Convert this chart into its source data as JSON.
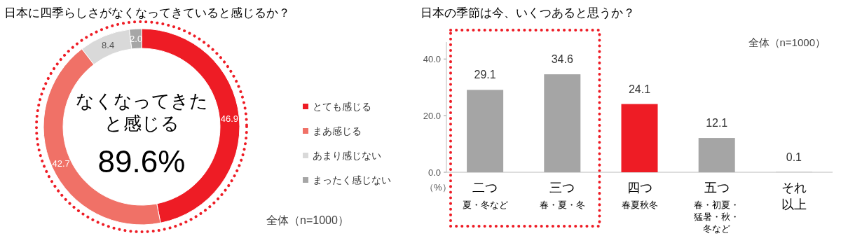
{
  "chart_data": [
    {
      "type": "donut",
      "title": "日本に四季らしさがなくなってきていると感じるか？",
      "categories": [
        "とても感じる",
        "まあ感じる",
        "あまり感じない",
        "まったく感じない"
      ],
      "values": [
        46.9,
        42.7,
        8.4,
        2.0
      ],
      "colors": [
        "#ee1c25",
        "#f07167",
        "#d9d9d9",
        "#a6a6a6"
      ],
      "value_labels": [
        "46.9",
        "42.7",
        "8.4",
        "2.0"
      ],
      "legend": "right",
      "annotations": [
        "なくなってきたと感じる",
        "89.6%",
        "全体（n=1000）"
      ]
    },
    {
      "type": "bar",
      "title": "日本の季節は今、いくつあると思うか？",
      "categories": [
        "二つ夏・冬など",
        "三つ春・夏・冬",
        "四つ春夏秋冬",
        "五つ春・初夏・猛暑・秋・冬など",
        "それ以上"
      ],
      "values": [
        29.1,
        34.6,
        24.1,
        12.1,
        0.1
      ],
      "colors": [
        "#a5a5a5",
        "#a5a5a5",
        "#ee1c25",
        "#a5a5a5",
        "#a5a5a5"
      ],
      "value_labels": [
        "29.1",
        "34.6",
        "24.1",
        "12.1",
        "0.1"
      ],
      "ylim": [
        0,
        46
      ],
      "yticks": [
        {
          "value": 0,
          "label": "0.0"
        },
        {
          "value": 20,
          "label": "20.0"
        },
        {
          "value": 40,
          "label": "40.0"
        }
      ],
      "ylabel": "（%）",
      "annotations": [
        "全体（n=1000）"
      ]
    }
  ]
}
